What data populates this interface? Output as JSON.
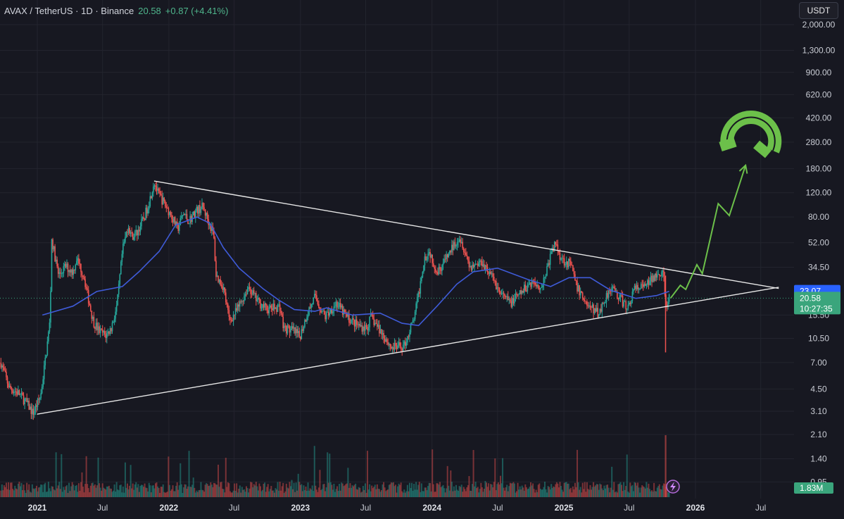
{
  "header": {
    "symbol": "AVAX / TetherUS · 1D · Binance",
    "price": "20.58",
    "change": "+0.87 (+4.41%)"
  },
  "currency_button": "USDT",
  "colors": {
    "background": "#171821",
    "grid": "#23242e",
    "up": "#26a69a",
    "down": "#ef5350",
    "ma": "#3f5bd8",
    "trendline": "#e8e8e8",
    "projection": "#6cc04a",
    "price_tag": "#3aa57c",
    "ma_tag": "#2962ff"
  },
  "chart_data": {
    "type": "line",
    "scale": "log",
    "y_ticks": [
      2000,
      1300,
      900,
      620,
      420,
      280,
      180,
      120,
      80,
      52,
      34.5,
      23.07,
      20.58,
      15.5,
      10.5,
      7,
      4.5,
      3.1,
      2.1,
      1.4,
      0.95
    ],
    "y_tick_labels": [
      "2,000.00",
      "1,300.00",
      "900.00",
      "620.00",
      "420.00",
      "280.00",
      "180.00",
      "120.00",
      "80.00",
      "52.00",
      "34.50",
      "23.07",
      "20.58",
      "15.50",
      "10.50",
      "7.00",
      "4.50",
      "3.10",
      "2.10",
      "1.40",
      "0.95"
    ],
    "x_ticks": [
      "2021",
      "Jul",
      "2022",
      "Jul",
      "2023",
      "Jul",
      "2024",
      "Jul",
      "2025",
      "Jul",
      "2026",
      "Jul"
    ],
    "x_tick_years": [
      true,
      false,
      true,
      false,
      true,
      false,
      true,
      false,
      true,
      false,
      true,
      false
    ],
    "x_tick_dates": [
      "2021-01-01",
      "2021-07-01",
      "2022-01-01",
      "2022-07-01",
      "2023-01-01",
      "2023-07-01",
      "2024-01-01",
      "2024-07-01",
      "2025-01-01",
      "2025-07-01",
      "2026-01-01",
      "2026-07-01"
    ],
    "price_series": [
      [
        "2020-09-22",
        7.0
      ],
      [
        "2020-10-15",
        4.6
      ],
      [
        "2020-11-10",
        4.2
      ],
      [
        "2020-12-01",
        3.6
      ],
      [
        "2020-12-20",
        3.0
      ],
      [
        "2021-01-10",
        4.0
      ],
      [
        "2021-01-25",
        8.0
      ],
      [
        "2021-02-05",
        14.0
      ],
      [
        "2021-02-10",
        55.0
      ],
      [
        "2021-02-20",
        40.0
      ],
      [
        "2021-03-01",
        30.0
      ],
      [
        "2021-03-20",
        35.0
      ],
      [
        "2021-04-10",
        32.0
      ],
      [
        "2021-04-20",
        40.0
      ],
      [
        "2021-05-10",
        30.0
      ],
      [
        "2021-05-20",
        22.0
      ],
      [
        "2021-06-05",
        14.0
      ],
      [
        "2021-06-20",
        12.0
      ],
      [
        "2021-07-10",
        11.0
      ],
      [
        "2021-07-25",
        12.5
      ],
      [
        "2021-08-10",
        18.0
      ],
      [
        "2021-08-25",
        45.0
      ],
      [
        "2021-09-10",
        70.0
      ],
      [
        "2021-09-20",
        58.0
      ],
      [
        "2021-10-05",
        62.0
      ],
      [
        "2021-10-25",
        80.0
      ],
      [
        "2021-11-10",
        110.0
      ],
      [
        "2021-11-21",
        146.0
      ],
      [
        "2021-12-01",
        120.0
      ],
      [
        "2021-12-20",
        100.0
      ],
      [
        "2022-01-10",
        80.0
      ],
      [
        "2022-01-25",
        65.0
      ],
      [
        "2022-02-10",
        85.0
      ],
      [
        "2022-02-25",
        75.0
      ],
      [
        "2022-03-20",
        90.0
      ],
      [
        "2022-04-05",
        95.0
      ],
      [
        "2022-04-25",
        70.0
      ],
      [
        "2022-05-05",
        60.0
      ],
      [
        "2022-05-12",
        30.0
      ],
      [
        "2022-06-01",
        25.0
      ],
      [
        "2022-06-18",
        14.0
      ],
      [
        "2022-07-10",
        17.0
      ],
      [
        "2022-08-10",
        25.0
      ],
      [
        "2022-09-01",
        20.0
      ],
      [
        "2022-10-01",
        17.0
      ],
      [
        "2022-11-05",
        18.0
      ],
      [
        "2022-11-15",
        12.5
      ],
      [
        "2022-12-10",
        12.0
      ],
      [
        "2022-12-30",
        10.8
      ],
      [
        "2023-01-20",
        16.0
      ],
      [
        "2023-02-10",
        21.0
      ],
      [
        "2023-03-10",
        15.0
      ],
      [
        "2023-04-10",
        19.0
      ],
      [
        "2023-05-10",
        15.0
      ],
      [
        "2023-06-10",
        13.0
      ],
      [
        "2023-07-05",
        12.5
      ],
      [
        "2023-07-15",
        15.0
      ],
      [
        "2023-08-20",
        11.0
      ],
      [
        "2023-09-10",
        9.0
      ],
      [
        "2023-10-15",
        9.2
      ],
      [
        "2023-11-10",
        14.0
      ],
      [
        "2023-11-25",
        22.0
      ],
      [
        "2023-12-10",
        40.0
      ],
      [
        "2023-12-25",
        45.0
      ],
      [
        "2024-01-15",
        32.0
      ],
      [
        "2024-02-10",
        40.0
      ],
      [
        "2024-03-15",
        58.0
      ],
      [
        "2024-03-25",
        52.0
      ],
      [
        "2024-04-15",
        35.0
      ],
      [
        "2024-05-20",
        38.0
      ],
      [
        "2024-06-20",
        28.0
      ],
      [
        "2024-07-10",
        22.0
      ],
      [
        "2024-08-05",
        19.0
      ],
      [
        "2024-09-01",
        22.0
      ],
      [
        "2024-10-01",
        27.0
      ],
      [
        "2024-11-01",
        25.0
      ],
      [
        "2024-11-25",
        42.0
      ],
      [
        "2024-12-08",
        52.0
      ],
      [
        "2024-12-25",
        40.0
      ],
      [
        "2025-01-20",
        36.0
      ],
      [
        "2025-02-05",
        25.0
      ],
      [
        "2025-03-10",
        18.0
      ],
      [
        "2025-04-08",
        16.0
      ],
      [
        "2025-05-10",
        25.0
      ],
      [
        "2025-06-10",
        20.0
      ],
      [
        "2025-06-25",
        17.0
      ],
      [
        "2025-07-15",
        24.0
      ],
      [
        "2025-08-15",
        25.0
      ],
      [
        "2025-09-10",
        30.0
      ],
      [
        "2025-09-20",
        33.0
      ],
      [
        "2025-10-05",
        30.0
      ],
      [
        "2025-10-10",
        17.0
      ],
      [
        "2025-10-20",
        20.58
      ]
    ],
    "moving_average": [
      [
        "2021-01-15",
        15.5
      ],
      [
        "2021-04-10",
        18.0
      ],
      [
        "2021-06-15",
        23.0
      ],
      [
        "2021-08-25",
        25.0
      ],
      [
        "2021-10-10",
        32.0
      ],
      [
        "2021-12-05",
        45.0
      ],
      [
        "2022-01-20",
        70.0
      ],
      [
        "2022-03-20",
        80.0
      ],
      [
        "2022-04-25",
        72.0
      ],
      [
        "2022-06-01",
        48.0
      ],
      [
        "2022-07-15",
        34.0
      ],
      [
        "2022-09-20",
        24.0
      ],
      [
        "2022-11-01",
        20.0
      ],
      [
        "2022-12-15",
        17.0
      ],
      [
        "2023-02-10",
        16.5
      ],
      [
        "2023-03-15",
        17.5
      ],
      [
        "2023-05-25",
        15.5
      ],
      [
        "2023-08-10",
        16.0
      ],
      [
        "2023-10-10",
        13.5
      ],
      [
        "2023-11-25",
        13.0
      ],
      [
        "2024-01-15",
        18.0
      ],
      [
        "2024-03-10",
        26.0
      ],
      [
        "2024-04-25",
        32.0
      ],
      [
        "2024-07-01",
        34.0
      ],
      [
        "2024-09-25",
        28.0
      ],
      [
        "2024-11-25",
        25.0
      ],
      [
        "2025-01-15",
        29.0
      ],
      [
        "2025-03-15",
        29.0
      ],
      [
        "2025-05-10",
        23.5
      ],
      [
        "2025-07-20",
        20.5
      ],
      [
        "2025-09-15",
        21.5
      ],
      [
        "2025-10-20",
        23.07
      ]
    ],
    "trendlines": [
      {
        "name": "descending-resistance",
        "points": [
          [
            "2021-11-21",
            146.0
          ],
          [
            "2026-08-20",
            24.2
          ]
        ]
      },
      {
        "name": "ascending-support",
        "points": [
          [
            "2020-12-31",
            2.95
          ],
          [
            "2026-08-20",
            24.7
          ]
        ]
      }
    ],
    "projection": [
      [
        "2025-10-24",
        20.6
      ],
      [
        "2025-11-20",
        25.5
      ],
      [
        "2025-12-05",
        23.8
      ],
      [
        "2026-01-05",
        36.0
      ],
      [
        "2026-01-20",
        31.0
      ],
      [
        "2026-03-05",
        100.0
      ],
      [
        "2026-04-05",
        82.0
      ],
      [
        "2026-05-20",
        190.0
      ]
    ],
    "current_price": 20.58,
    "ma_value": 23.07,
    "countdown": "10:27:35",
    "volume_value": "1.83M"
  }
}
